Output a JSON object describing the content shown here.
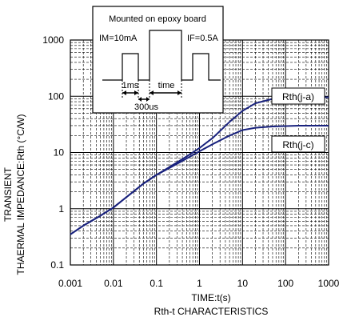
{
  "chart_data": {
    "type": "line",
    "title": "Rth-t CHARACTERISTICS",
    "xlabel": "TIME:t(s)",
    "ylabel_line1": "TRANSIENT",
    "ylabel_line2": "THAERMAL IMPEDANCE:Rth (°C/W)",
    "x_scale": "log",
    "y_scale": "log",
    "xlim": [
      0.001,
      1000
    ],
    "ylim": [
      0.1,
      1000
    ],
    "grid": true,
    "x_ticks": [
      {
        "value": 0.001,
        "label": "0.001"
      },
      {
        "value": 0.01,
        "label": "0.01"
      },
      {
        "value": 0.1,
        "label": "0.1"
      },
      {
        "value": 1,
        "label": "1"
      },
      {
        "value": 10,
        "label": "10"
      },
      {
        "value": 100,
        "label": "100"
      },
      {
        "value": 1000,
        "label": "1000"
      }
    ],
    "y_ticks": [
      {
        "value": 0.1,
        "label": "0.1"
      },
      {
        "value": 1,
        "label": "1"
      },
      {
        "value": 10,
        "label": "10"
      },
      {
        "value": 100,
        "label": "100"
      },
      {
        "value": 1000,
        "label": "1000"
      }
    ],
    "series": [
      {
        "name": "Rth(j-a)",
        "color": "#1a237e",
        "x": [
          0.001,
          0.002,
          0.005,
          0.01,
          0.02,
          0.05,
          0.1,
          0.2,
          0.5,
          1,
          2,
          5,
          10,
          20,
          50,
          100,
          200,
          500,
          1000
        ],
        "y": [
          0.35,
          0.5,
          0.75,
          1.05,
          1.6,
          2.8,
          4.0,
          5.5,
          8.5,
          12,
          18,
          35,
          55,
          75,
          90,
          95,
          96,
          96,
          96
        ]
      },
      {
        "name": "Rth(j-c)",
        "color": "#1a237e",
        "x": [
          0.001,
          0.002,
          0.005,
          0.01,
          0.02,
          0.05,
          0.1,
          0.2,
          0.5,
          1,
          2,
          5,
          10,
          20,
          50,
          100,
          200,
          500,
          1000
        ],
        "y": [
          0.35,
          0.5,
          0.75,
          1.05,
          1.6,
          2.8,
          4.0,
          5.3,
          7.8,
          10.5,
          14,
          20,
          25,
          27.5,
          29,
          29.5,
          30,
          30,
          30
        ]
      }
    ]
  },
  "inset": {
    "title": "Mounted on epoxy board",
    "im_label": "IM=10mA",
    "if_label": "IF=0.5A",
    "t1_label": "1ms",
    "t2_label": "time",
    "t3_label": "300us"
  }
}
